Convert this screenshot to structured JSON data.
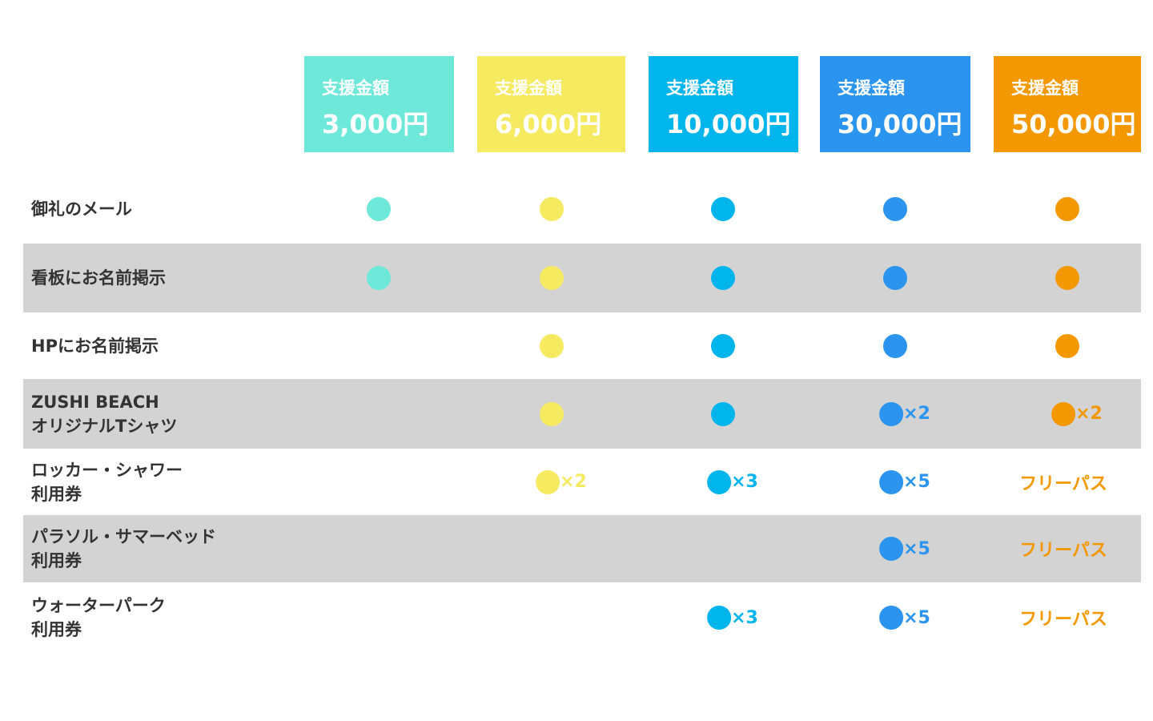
{
  "columns": [
    {
      "label": "支援金額",
      "amount": "3,000円",
      "color": "#6ee8d8"
    },
    {
      "label": "支援金額",
      "amount": "6,000円",
      "color": "#f5ea60"
    },
    {
      "label": "支援金額",
      "amount": "10,000円",
      "color": "#00b4ec"
    },
    {
      "label": "支援金額",
      "amount": "30,000円",
      "color": "#2b94ee"
    },
    {
      "label": "支援金額",
      "amount": "50,000円",
      "color": "#f39800"
    }
  ],
  "rows": [
    {
      "lines": [
        "御礼のメール"
      ],
      "cells": [
        {
          "dot": true
        },
        {
          "dot": true
        },
        {
          "dot": true
        },
        {
          "dot": true
        },
        {
          "dot": true
        }
      ]
    },
    {
      "lines": [
        "看板にお名前掲示"
      ],
      "cells": [
        {
          "dot": true
        },
        {
          "dot": true
        },
        {
          "dot": true
        },
        {
          "dot": true
        },
        {
          "dot": true
        }
      ]
    },
    {
      "lines": [
        "HPにお名前掲示"
      ],
      "cells": [
        null,
        {
          "dot": true
        },
        {
          "dot": true
        },
        {
          "dot": true
        },
        {
          "dot": true
        }
      ]
    },
    {
      "lines": [
        "ZUSHI BEACH",
        "オリジナルTシャツ"
      ],
      "cells": [
        null,
        {
          "dot": true
        },
        {
          "dot": true
        },
        {
          "dot": true,
          "text": "×2"
        },
        {
          "dot": true,
          "text": "×2"
        }
      ]
    },
    {
      "lines": [
        "ロッカー・シャワー",
        "利用券"
      ],
      "cells": [
        null,
        {
          "dot": true,
          "text": "×2"
        },
        {
          "dot": true,
          "text": "×3"
        },
        {
          "dot": true,
          "text": "×5"
        },
        {
          "text": "フリーパス"
        }
      ]
    },
    {
      "lines": [
        "パラソル・サマーベッド",
        "利用券"
      ],
      "cells": [
        null,
        null,
        null,
        {
          "dot": true,
          "text": "×5"
        },
        {
          "text": "フリーパス"
        }
      ]
    },
    {
      "lines": [
        "ウォーターパーク",
        "利用券"
      ],
      "cells": [
        null,
        null,
        {
          "dot": true,
          "text": "×3"
        },
        {
          "dot": true,
          "text": "×5"
        },
        {
          "text": "フリーパス"
        }
      ]
    }
  ]
}
